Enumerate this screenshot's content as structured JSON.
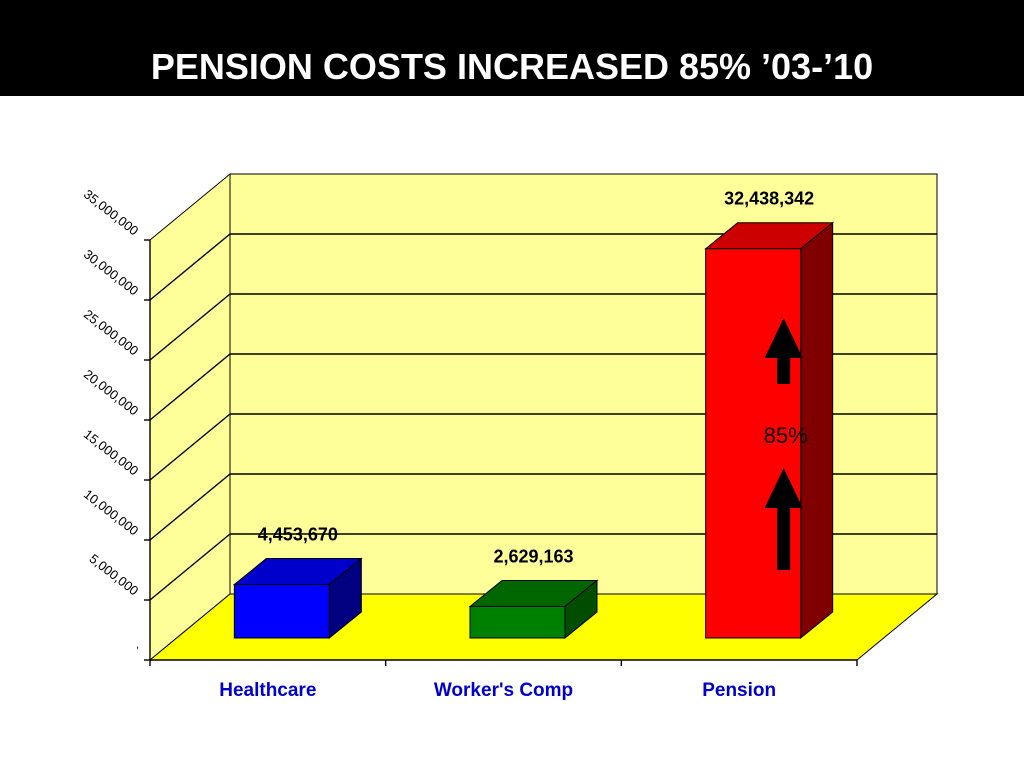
{
  "header": {
    "title": "PENSION COSTS INCREASED 85% ’03-’10"
  },
  "chart_data": {
    "type": "bar",
    "categories": [
      "Healthcare",
      "Worker's Comp",
      "Pension"
    ],
    "values": [
      4453670,
      2629163,
      32438342
    ],
    "data_labels": [
      "4,453,670",
      "2,629,163",
      "32,438,342"
    ],
    "yticks": [
      "`",
      "5,000,000",
      "10,000,000",
      "15,000,000",
      "20,000,000",
      "25,000,000",
      "30,000,000",
      "35,000,000"
    ],
    "ylim": [
      0,
      35000000
    ],
    "grid": true,
    "legend": "none",
    "annotation": "85%",
    "colors": {
      "wall": "#ffff99",
      "floor": "#ffff00",
      "bars": [
        {
          "front": "#0000ff",
          "top": "#0000cc",
          "side": "#000080"
        },
        {
          "front": "#008000",
          "top": "#006600",
          "side": "#004d00"
        },
        {
          "front": "#ff0000",
          "top": "#cc0000",
          "side": "#800000"
        }
      ],
      "category_label": "#0000cc",
      "arrow": "#000000"
    }
  }
}
